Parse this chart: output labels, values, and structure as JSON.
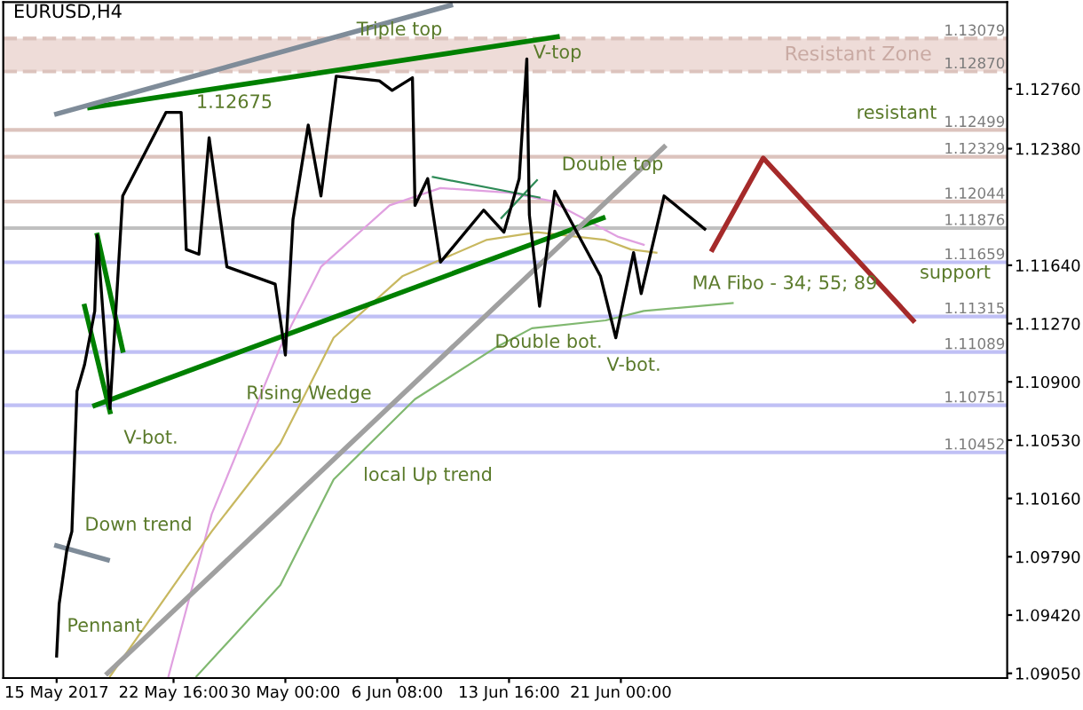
{
  "chart_data": {
    "type": "line",
    "title": "EURUSD,H4",
    "xlim": [
      "2017-05-11T12:00",
      "2017-07-16T08:00"
    ],
    "ylim": [
      1.0902,
      1.1331
    ],
    "xticks": [
      {
        "value": "2017-05-15T00:00",
        "label": "15 May 2017"
      },
      {
        "value": "2017-05-22T16:00",
        "label": "22 May 16:00"
      },
      {
        "value": "2017-05-30T00:00",
        "label": "30 May 00:00"
      },
      {
        "value": "2017-06-06T08:00",
        "label": "6 Jun 08:00"
      },
      {
        "value": "2017-06-13T16:00",
        "label": "13 Jun 16:00"
      },
      {
        "value": "2017-06-21T00:00",
        "label": "21 Jun 00:00"
      }
    ],
    "yticks": [
      {
        "value": 1.1276,
        "label": "1.12760"
      },
      {
        "value": 1.1238,
        "label": "1.12380"
      },
      {
        "value": 1.1164,
        "label": "1.11640"
      },
      {
        "value": 1.1127,
        "label": "1.11270"
      },
      {
        "value": 1.109,
        "label": "1.10900"
      },
      {
        "value": 1.1053,
        "label": "1.10530"
      },
      {
        "value": 1.1016,
        "label": "1.10160"
      },
      {
        "value": 1.0979,
        "label": "1.09790"
      },
      {
        "value": 1.0942,
        "label": "1.09420"
      },
      {
        "value": 1.0905,
        "label": "1.09050"
      }
    ],
    "grid": false,
    "legend": false,
    "marker": "none",
    "line_style": "solid",
    "series": [
      {
        "color": "#000000",
        "x": [
          "2017-05-15T00:00",
          "2017-05-15T04:00",
          "2017-05-15T16:00",
          "2017-05-16T00:00",
          "2017-05-16T08:00",
          "2017-05-16T20:00",
          "2017-05-17T12:00",
          "2017-05-17T16:00",
          "2017-05-18T12:00",
          "2017-05-19T08:00",
          "2017-05-22T04:00",
          "2017-05-23T04:00",
          "2017-05-23T12:00",
          "2017-05-24T08:00",
          "2017-05-25T00:00",
          "2017-05-26T04:00",
          "2017-05-29T08:00",
          "2017-05-30T00:00",
          "2017-05-30T12:00",
          "2017-05-31T12:00",
          "2017-06-01T08:00",
          "2017-06-02T08:00",
          "2017-06-05T04:00",
          "2017-06-06T00:00",
          "2017-06-07T08:00",
          "2017-06-07T12:00",
          "2017-06-08T08:00",
          "2017-06-09T04:00",
          "2017-06-12T00:00",
          "2017-06-13T08:00",
          "2017-06-14T08:00",
          "2017-06-14T20:00",
          "2017-06-15T00:00",
          "2017-06-15T16:00",
          "2017-06-16T16:00",
          "2017-06-19T16:00",
          "2017-06-20T16:00",
          "2017-06-21T20:00",
          "2017-06-22T08:00",
          "2017-06-23T20:00",
          "2017-06-26T12:00"
        ],
        "values": [
          1.0916,
          1.0949,
          1.0983,
          1.0995,
          1.1084,
          1.1101,
          1.1135,
          1.1183,
          1.1073,
          1.1208,
          1.1261,
          1.1261,
          1.1174,
          1.1171,
          1.1245,
          1.1163,
          1.1152,
          1.1107,
          1.1193,
          1.1253,
          1.1208,
          1.1284,
          1.1281,
          1.1275,
          1.1283,
          1.1202,
          1.1219,
          1.1166,
          1.1199,
          1.1185,
          1.1219,
          1.1295,
          1.1196,
          1.1138,
          1.1211,
          1.1157,
          1.1118,
          1.1172,
          1.1146,
          1.1208,
          1.1187
        ]
      },
      {
        "color": "#e0a0e0",
        "x": [
          "2017-05-22T08:00",
          "2017-05-25T04:00",
          "2017-05-29T16:00",
          "2017-06-01T08:00",
          "2017-06-05T20:00",
          "2017-06-09T04:00",
          "2017-06-13T16:00",
          "2017-06-16T08:00",
          "2017-06-20T20:00",
          "2017-06-22T12:00"
        ],
        "values": [
          1.0903,
          1.1006,
          1.1112,
          1.1163,
          1.1202,
          1.1213,
          1.121,
          1.1205,
          1.1182,
          1.1177
        ]
      },
      {
        "color": "#c8b860",
        "x": [
          "2017-05-18T12:00",
          "2017-05-25T04:00",
          "2017-05-29T16:00",
          "2017-06-02T04:00",
          "2017-06-06T16:00",
          "2017-06-12T04:00",
          "2017-06-15T12:00",
          "2017-06-20T00:00",
          "2017-06-21T16:00",
          "2017-06-23T08:00"
        ],
        "values": [
          1.0903,
          1.0995,
          1.1051,
          1.1118,
          1.1157,
          1.118,
          1.1185,
          1.118,
          1.1174,
          1.1172
        ]
      },
      {
        "color": "#80b870",
        "x": [
          "2017-05-24T04:00",
          "2017-05-29T16:00",
          "2017-06-02T04:00",
          "2017-06-07T12:00",
          "2017-06-12T20:00",
          "2017-06-15T04:00",
          "2017-06-20T00:00",
          "2017-06-22T12:00",
          "2017-06-28T08:00"
        ],
        "values": [
          1.0903,
          1.0961,
          1.1028,
          1.1079,
          1.1112,
          1.1124,
          1.1129,
          1.1135,
          1.114
        ]
      },
      {
        "color": "#008000",
        "x": [
          "2017-05-17T04:00",
          "2017-06-16T20:00"
        ],
        "values": [
          1.1264,
          1.1309
        ]
      },
      {
        "color": "#008000",
        "x": [
          "2017-05-17T12:00",
          "2017-06-19T20:00"
        ],
        "values": [
          1.1075,
          1.1194
        ]
      },
      {
        "color": "#008000",
        "x": [
          "2017-05-17T16:00",
          "2017-05-19T08:00"
        ],
        "values": [
          1.1183,
          1.111
        ]
      },
      {
        "color": "#008000",
        "x": [
          "2017-05-16T20:00",
          "2017-05-18T12:00"
        ],
        "values": [
          1.1138,
          1.1071
        ]
      },
      {
        "color": "#7f8c99",
        "x": [
          "2017-05-15T00:00",
          "2017-06-09T20:00"
        ],
        "values": [
          1.126,
          1.1329
        ]
      },
      {
        "color": "#7f8c99",
        "x": [
          "2017-05-15T00:00",
          "2017-05-18T08:00"
        ],
        "values": [
          1.0986,
          1.0977
        ]
      },
      {
        "color": "#a0a0a0",
        "x": [
          "2017-05-18T08:00",
          "2017-06-23T20:00"
        ],
        "values": [
          1.0905,
          1.1239
        ]
      },
      {
        "color": "#2e8b57",
        "x": [
          "2017-06-08T16:00",
          "2017-06-15T16:00"
        ],
        "values": [
          1.122,
          1.1207
        ]
      },
      {
        "color": "#2e8b57",
        "x": [
          "2017-06-13T04:00",
          "2017-06-15T12:00"
        ],
        "values": [
          1.1194,
          1.1218
        ]
      },
      {
        "color": "#a52a2a",
        "x": [
          "2017-06-27T00:00",
          "2017-06-30T08:00",
          "2017-07-10T04:00"
        ],
        "values": [
          1.1174,
          1.1232,
          1.1129
        ]
      }
    ],
    "bands": [
      {
        "axis": "y",
        "from": 1.1287,
        "to": 1.13079,
        "label": "Resistant Zone",
        "color": "#eedcd8"
      }
    ],
    "ref_lines": [
      {
        "axis": "y",
        "value": 1.13079,
        "label": "1.13079",
        "color": "#dcc3bd",
        "line_style": "dashed"
      },
      {
        "axis": "y",
        "value": 1.1287,
        "label": "1.12870",
        "color": "#dcc3bd",
        "line_style": "dashed"
      },
      {
        "axis": "y",
        "value": 1.12499,
        "label": "1.12499",
        "color": "#dcc3bd",
        "line_style": "solid"
      },
      {
        "axis": "y",
        "value": 1.12329,
        "label": "1.12329",
        "color": "#dcc3bd",
        "line_style": "solid"
      },
      {
        "axis": "y",
        "value": 1.12044,
        "label": "1.12044",
        "color": "#dcc3bd",
        "line_style": "solid"
      },
      {
        "axis": "y",
        "value": 1.11876,
        "label": "1.11876",
        "color": "#c0c0c0",
        "line_style": "solid"
      },
      {
        "axis": "y",
        "value": 1.11659,
        "label": "1.11659",
        "color": "#c0c0f5",
        "line_style": "solid"
      },
      {
        "axis": "y",
        "value": 1.11315,
        "label": "1.11315",
        "color": "#c0c0f5",
        "line_style": "solid"
      },
      {
        "axis": "y",
        "value": 1.11089,
        "label": "1.11089",
        "color": "#c0c0f5",
        "line_style": "solid"
      },
      {
        "axis": "y",
        "value": 1.10751,
        "label": "1.10751",
        "color": "#c0c0f5",
        "line_style": "solid"
      },
      {
        "axis": "y",
        "value": 1.10452,
        "label": "1.10452",
        "color": "#c0c0f5",
        "line_style": "solid"
      }
    ],
    "annotations": [
      "Triple top",
      "V-top",
      "Double top",
      "Double bot.",
      "V-bot.",
      "V-bot.",
      "Rising Wedge",
      "local Up trend",
      "Down trend",
      "Pennant",
      "MA Fibo - 34; 55; 89",
      "1.12675",
      "resistant",
      "support"
    ]
  }
}
